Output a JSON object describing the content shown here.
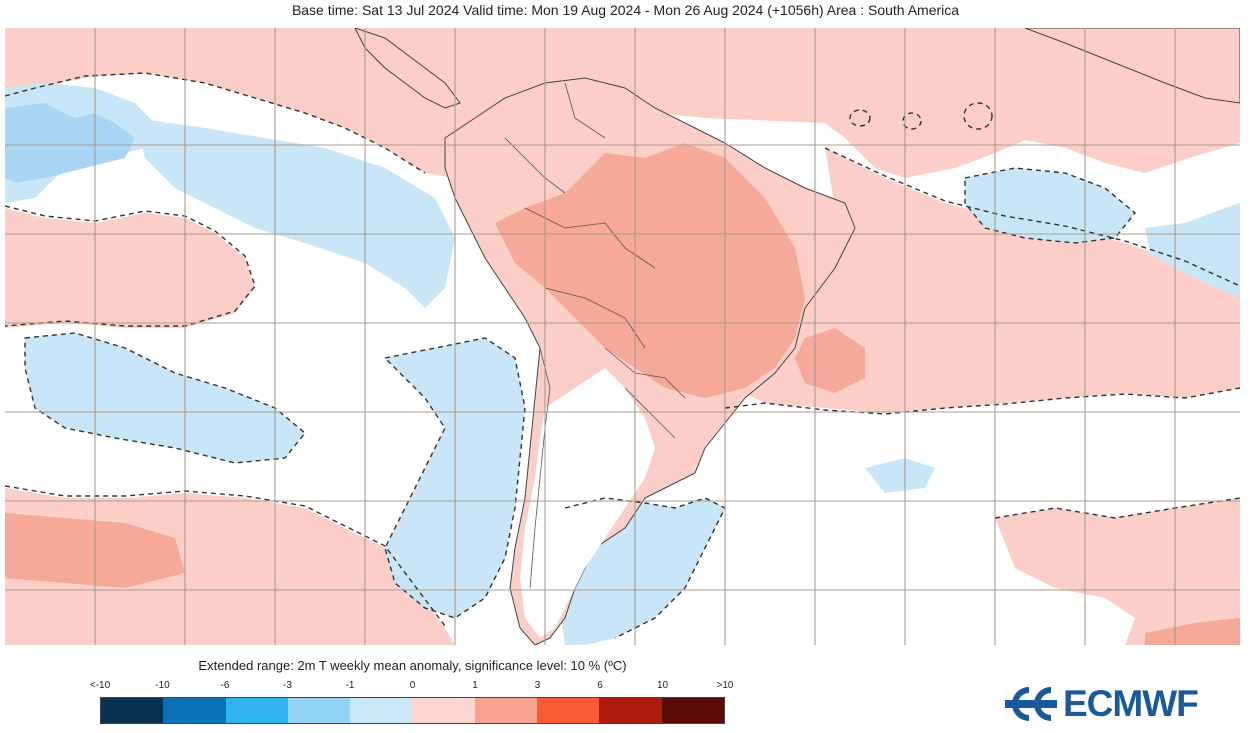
{
  "header": {
    "title": "Base time: Sat 13 Jul 2024 Valid time: Mon 19 Aug 2024 - Mon 26 Aug 2024 (+1056h) Area : South America"
  },
  "map": {
    "region": "South America",
    "colors": {
      "ocean_warm": "#fbcfc7",
      "land_warm": "#f6a899",
      "cool": "#c8e6f8",
      "cool_strong": "#a9d6f4",
      "neutral": "#ffffff",
      "gridline": "#a99c90",
      "border": "#444444",
      "contour": "#333333"
    }
  },
  "legend": {
    "title": "Extended range: 2m T weekly mean anomaly, significance level: 10 % (ºC)",
    "ticks": [
      "<-10",
      "-10",
      "-6",
      "-3",
      "-1",
      "0",
      "1",
      "3",
      "6",
      "10",
      ">10"
    ],
    "colors": [
      "#08324f",
      "#0a71b8",
      "#30b4f0",
      "#95d3f6",
      "#cbe8f8",
      "#fcd6d0",
      "#f7a291",
      "#fb5a37",
      "#ae1c0c",
      "#5c0c08"
    ]
  },
  "logo": {
    "text": "ECMWF",
    "color": "#1a5a9c"
  }
}
